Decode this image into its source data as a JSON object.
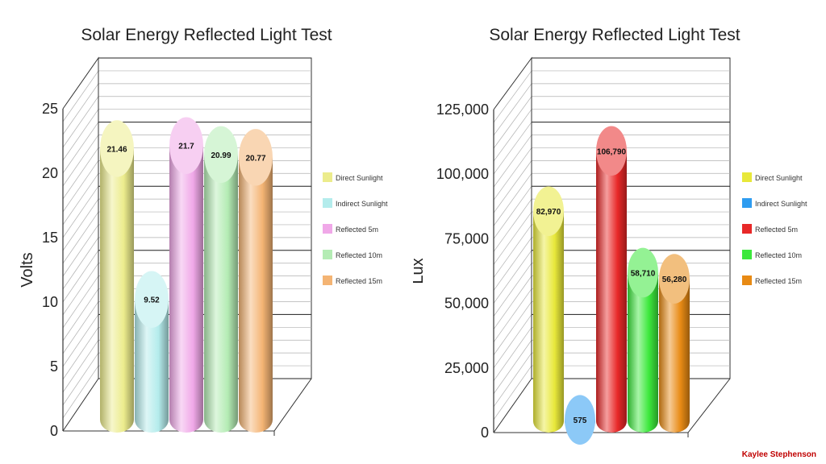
{
  "author": "Kaylee Stephenson",
  "chart_data": [
    {
      "type": "bar",
      "title": "Solar Energy Reflected Light Test",
      "ylabel": "Volts",
      "xlabel": "",
      "ylim": [
        0,
        25
      ],
      "yticks": [
        "0",
        "5",
        "10",
        "15",
        "20",
        "25"
      ],
      "ytick_values": [
        0,
        5,
        10,
        15,
        20,
        25
      ],
      "grid": true,
      "legend_position": "right",
      "categories": [
        "Direct Sunlight",
        "Indirect Sunlight",
        "Reflected 5m",
        "Reflected 10m",
        "Reflected 15m"
      ],
      "values": [
        21.46,
        9.52,
        21.7,
        20.99,
        20.77
      ],
      "value_labels": [
        "21.46",
        "9.52",
        "21.7",
        "20.99",
        "20.77"
      ],
      "colors": [
        "#ecec8c",
        "#b4ecec",
        "#f0a8e8",
        "#b4ecb4",
        "#f4b474"
      ]
    },
    {
      "type": "bar",
      "title": "Solar Energy Reflected Light Test",
      "ylabel": "Lux",
      "xlabel": "",
      "ylim": [
        0,
        125000
      ],
      "yticks": [
        "0",
        "25,000",
        "50,000",
        "75,000",
        "100,000",
        "125,000"
      ],
      "ytick_values": [
        0,
        25000,
        50000,
        75000,
        100000,
        125000
      ],
      "grid": true,
      "legend_position": "right",
      "categories": [
        "Direct Sunlight",
        "Indirect Sunlight",
        "Reflected 5m",
        "Reflected 10m",
        "Reflected 15m"
      ],
      "values": [
        82970,
        575,
        106790,
        58710,
        56280
      ],
      "value_labels": [
        "82,970",
        "575",
        "106,790",
        "58,710",
        "56,280"
      ],
      "colors": [
        "#e8e83a",
        "#2e9cf0",
        "#e82828",
        "#3ce83c",
        "#e88a14"
      ]
    }
  ]
}
